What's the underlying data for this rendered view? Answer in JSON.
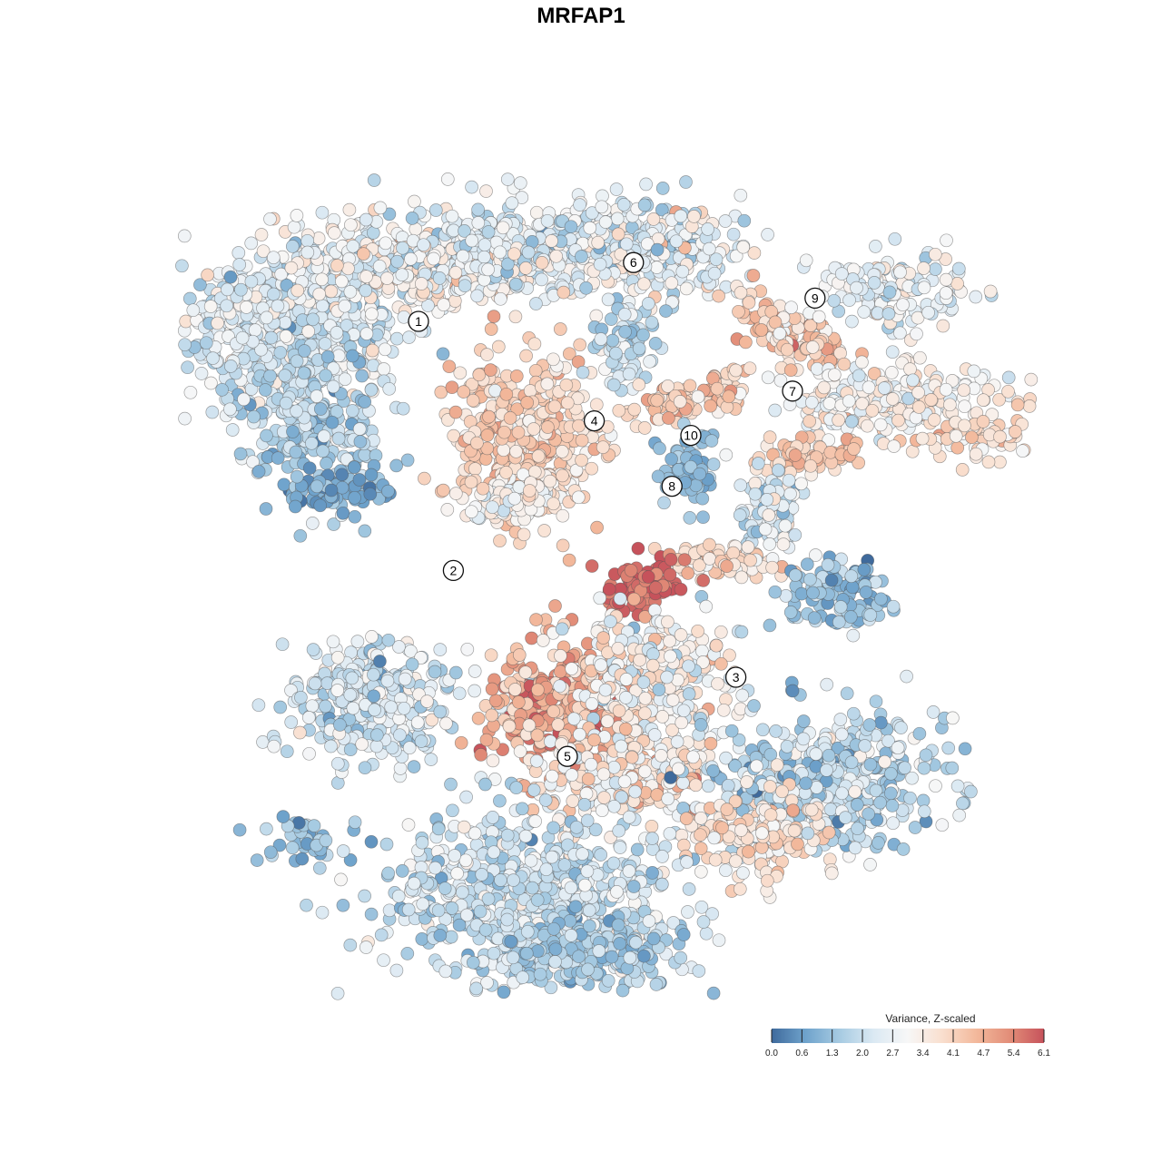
{
  "title": "MRFAP1",
  "chart_data": {
    "type": "scatter",
    "title": "MRFAP1",
    "xlabel": "",
    "ylabel": "",
    "color_variable": "Variance, Z-scaled",
    "colorbar": {
      "title": "Variance, Z-scaled",
      "range": [
        0.0,
        6.1
      ],
      "ticks": [
        "0.0",
        "0.6",
        "1.3",
        "2.0",
        "2.7",
        "3.4",
        "4.1",
        "4.7",
        "5.4",
        "6.1"
      ],
      "colors": [
        "#3f6a9c",
        "#6fa3cc",
        "#a7cbe2",
        "#dbe9f3",
        "#f7f7f7",
        "#f9dfcf",
        "#f3b99c",
        "#e28d78",
        "#c6525b"
      ]
    },
    "grid": false,
    "axes_visible": false,
    "legend_position": "bottom-right",
    "clusters": [
      {
        "label": "1",
        "x": -19.5,
        "y": 21.5,
        "mean_value": 2.3
      },
      {
        "label": "2",
        "x": -14.7,
        "y": -12.8,
        "mean_value": 2.2
      },
      {
        "label": "3",
        "x": 24.2,
        "y": -27.5,
        "mean_value": 2.2
      },
      {
        "label": "4",
        "x": 4.7,
        "y": 7.8,
        "mean_value": 4.0
      },
      {
        "label": "5",
        "x": 1.0,
        "y": -38.4,
        "mean_value": 2.2
      },
      {
        "label": "6",
        "x": 10.1,
        "y": 29.6,
        "mean_value": 2.6
      },
      {
        "label": "7",
        "x": 32.0,
        "y": 11.9,
        "mean_value": 3.6
      },
      {
        "label": "8",
        "x": 15.4,
        "y": -1.2,
        "mean_value": 4.4
      },
      {
        "label": "9",
        "x": 35.1,
        "y": 24.7,
        "mean_value": 2.4
      },
      {
        "label": "10",
        "x": 18.0,
        "y": 5.8,
        "mean_value": 1.2
      }
    ]
  }
}
